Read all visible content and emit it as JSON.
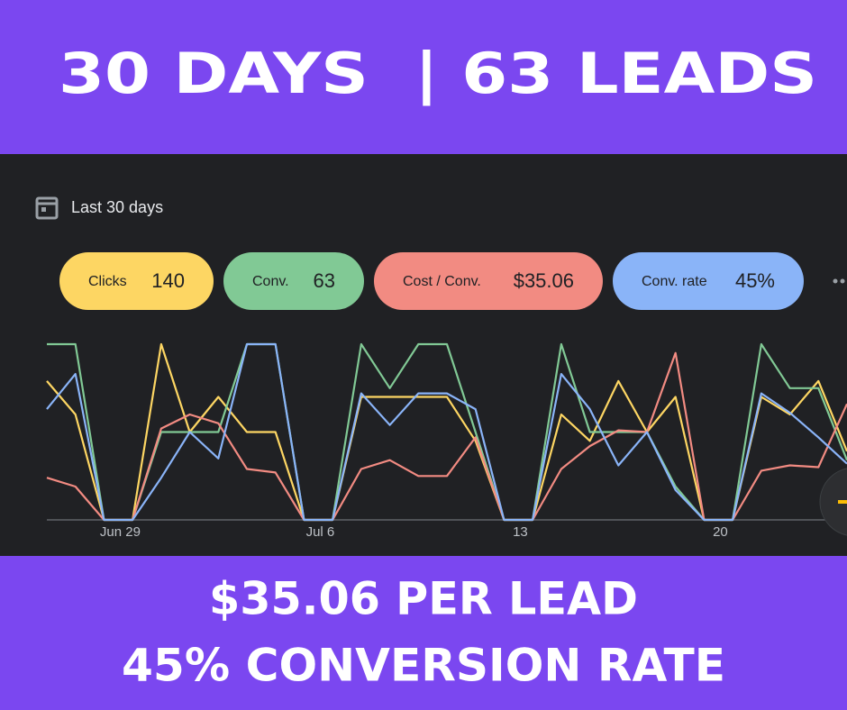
{
  "header": {
    "title": "30 DAYS  | 63 LEADS"
  },
  "date_filter": {
    "label": "Last 30 days"
  },
  "chart_data": {
    "type": "line",
    "categories": [
      null,
      null,
      "Jun 29",
      null,
      null,
      null,
      null,
      null,
      null,
      "Jul 6",
      null,
      null,
      null,
      null,
      null,
      null,
      "13",
      null,
      null,
      null,
      null,
      null,
      null,
      "20",
      null,
      null,
      null,
      null,
      null
    ],
    "ylim": [
      0,
      100
    ],
    "series": [
      {
        "name": "Clicks",
        "summary": "140",
        "color": "#fdd663",
        "values": [
          79,
          60,
          0,
          0,
          100,
          50,
          70,
          50,
          50,
          0,
          0,
          70,
          70,
          70,
          70,
          45,
          0,
          0,
          60,
          45,
          79,
          50,
          70,
          0,
          0,
          70,
          60,
          79,
          39
        ]
      },
      {
        "name": "Conv.",
        "summary": "63",
        "color": "#81c995",
        "values": [
          100,
          100,
          0,
          0,
          50,
          50,
          50,
          100,
          100,
          0,
          0,
          100,
          75,
          100,
          100,
          50,
          0,
          0,
          100,
          50,
          50,
          50,
          19,
          0,
          0,
          100,
          75,
          75,
          34
        ]
      },
      {
        "name": "Cost / Conv.",
        "summary": "$35.06",
        "color": "#f28b82",
        "values": [
          24,
          19,
          0,
          0,
          52,
          60,
          55,
          29,
          27,
          0,
          0,
          29,
          34,
          25,
          25,
          47,
          0,
          0,
          29,
          42,
          51,
          50,
          95,
          0,
          0,
          28,
          31,
          30,
          66
        ]
      },
      {
        "name": "Conv. rate",
        "summary": "45%",
        "color": "#8ab4f8",
        "values": [
          63,
          83,
          0,
          0,
          24,
          50,
          35,
          100,
          100,
          0,
          0,
          72,
          54,
          72,
          72,
          63,
          0,
          0,
          83,
          63,
          31,
          50,
          17,
          0,
          0,
          72,
          61,
          47,
          32
        ]
      }
    ]
  },
  "footer": {
    "lines": [
      "$35.06 PER LEAD",
      "45% CONVERSION RATE"
    ]
  }
}
